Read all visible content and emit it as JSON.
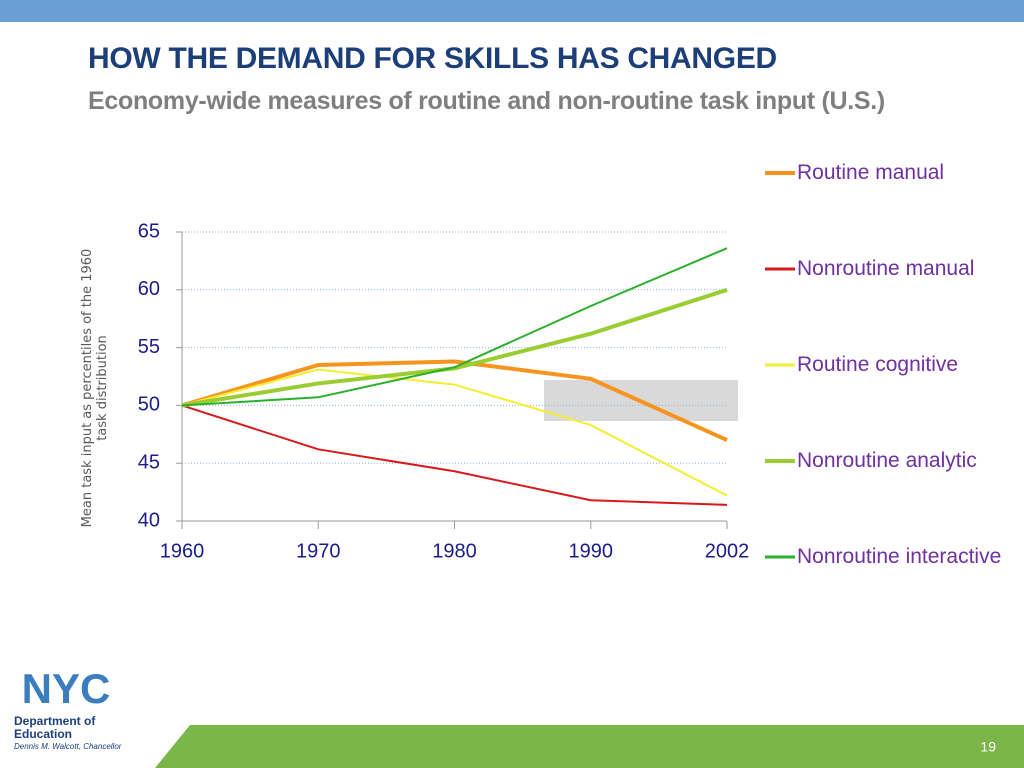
{
  "header": {
    "title": "HOW THE DEMAND FOR SKILLS HAS CHANGED",
    "subtitle": "Economy-wide measures of routine and non-routine task input (U.S.)"
  },
  "chart_data": {
    "type": "line",
    "y_label": "Mean task input as percentiles of the 1960 task distribution",
    "categories": [
      "1960",
      "1970",
      "1980",
      "1990",
      "2002"
    ],
    "series": [
      {
        "name": "Routine manual",
        "color": "#f7941d",
        "width": 4,
        "values": [
          50,
          53.5,
          53.8,
          52.3,
          47
        ]
      },
      {
        "name": "Nonroutine manual",
        "color": "#d7191c",
        "width": 2,
        "values": [
          50,
          46.2,
          44.3,
          41.8,
          41.4
        ]
      },
      {
        "name": "Routine cognitive",
        "color": "#f5ee30",
        "width": 2,
        "values": [
          50,
          53.1,
          51.8,
          48.3,
          42.2
        ]
      },
      {
        "name": "Nonroutine analytic",
        "color": "#9acd32",
        "width": 4,
        "values": [
          50,
          51.9,
          53.2,
          56.2,
          60
        ]
      },
      {
        "name": "Nonroutine interactive",
        "color": "#2ab02a",
        "width": 2,
        "values": [
          50,
          50.7,
          53.3,
          58.6,
          63.6
        ]
      }
    ],
    "ylim": [
      40,
      65
    ],
    "yticks": [
      40,
      45,
      50,
      55,
      60,
      65
    ],
    "grid": true
  },
  "footer": {
    "logo": "NYC",
    "department": "Department of Education",
    "chancellor": "Dennis M. Walcott, Chancellor",
    "page": "19"
  }
}
